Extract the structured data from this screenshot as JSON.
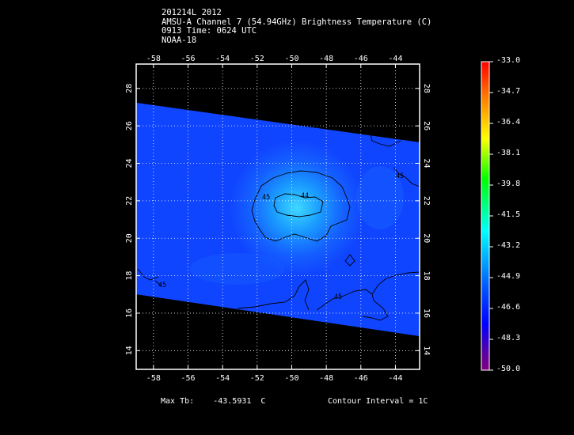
{
  "header": {
    "line1": "201214L 2012",
    "line2": "AMSU-A Channel 7 (54.94GHz) Brightness Temperature (C)",
    "line3": "0913 Time: 0624 UTC",
    "line4": "NOAA-18"
  },
  "map": {
    "lon_range": [
      -59,
      -42.6
    ],
    "lat_range": [
      13,
      29.3
    ],
    "lon_ticks": [
      "-58",
      "-56",
      "-54",
      "-52",
      "-50",
      "-48",
      "-46",
      "-44"
    ],
    "lat_ticks": [
      "14",
      "16",
      "18",
      "20",
      "22",
      "24",
      "26",
      "28"
    ],
    "contour_labels": [
      "45",
      "44",
      "45",
      "45",
      "45",
      "45"
    ],
    "grid": true
  },
  "colorbar": {
    "labels": [
      "-33.0",
      "-34.7",
      "-36.4",
      "-38.1",
      "-39.8",
      "-41.5",
      "-43.2",
      "-44.9",
      "-46.6",
      "-48.3",
      "-50.0"
    ],
    "colors": [
      "#ff0000",
      "#ffa000",
      "#ffff00",
      "#00ff00",
      "#00ffff",
      "#0070ff",
      "#0000ff",
      "#7000b0",
      "#800080"
    ]
  },
  "footer": {
    "max_tb": "Max Tb:    -43.5931  C",
    "contour_interval": "Contour Interval = 1C"
  }
}
